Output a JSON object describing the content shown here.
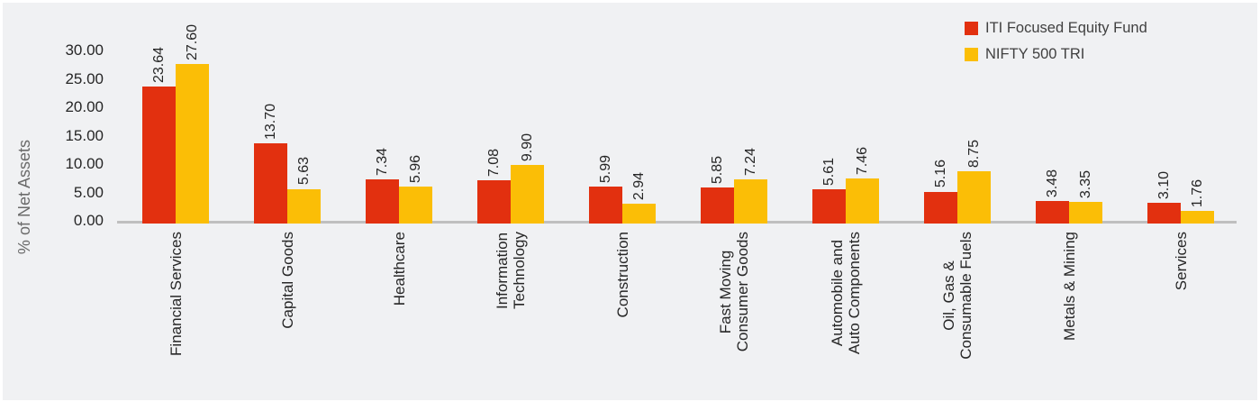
{
  "chart_data": {
    "type": "bar",
    "title": "",
    "xlabel": "",
    "ylabel": "% of Net Assets",
    "ylim": [
      0,
      30
    ],
    "y_ticks": [
      30,
      25,
      20,
      15,
      10,
      5,
      0
    ],
    "grid": false,
    "legend_position": "top-right",
    "background_color": "#f0f1f3",
    "axis_line_color": "#bfbfbf",
    "categories": [
      "Financial Services",
      "Capital Goods",
      "Healthcare",
      "Information\nTechnology",
      "Construction",
      "Fast Moving\nConsumer Goods",
      "Automobile and\nAuto Components",
      "Oil, Gas &\nConsumable Fuels",
      "Metals & Mining",
      "Services"
    ],
    "series": [
      {
        "name": "ITI Focused Equity Fund",
        "color": "#e2300f",
        "values": [
          23.64,
          13.7,
          7.34,
          7.08,
          5.99,
          5.85,
          5.61,
          5.16,
          3.48,
          3.1
        ]
      },
      {
        "name": "NIFTY 500 TRI",
        "color": "#fbbe06",
        "values": [
          27.6,
          5.63,
          5.96,
          9.9,
          2.94,
          7.24,
          7.46,
          8.75,
          3.35,
          1.76
        ]
      }
    ],
    "legend": [
      {
        "label": "ITI Focused Equity Fund",
        "color": "#e2300f"
      },
      {
        "label": "NIFTY 500 TRI",
        "color": "#fbbe06"
      }
    ]
  }
}
